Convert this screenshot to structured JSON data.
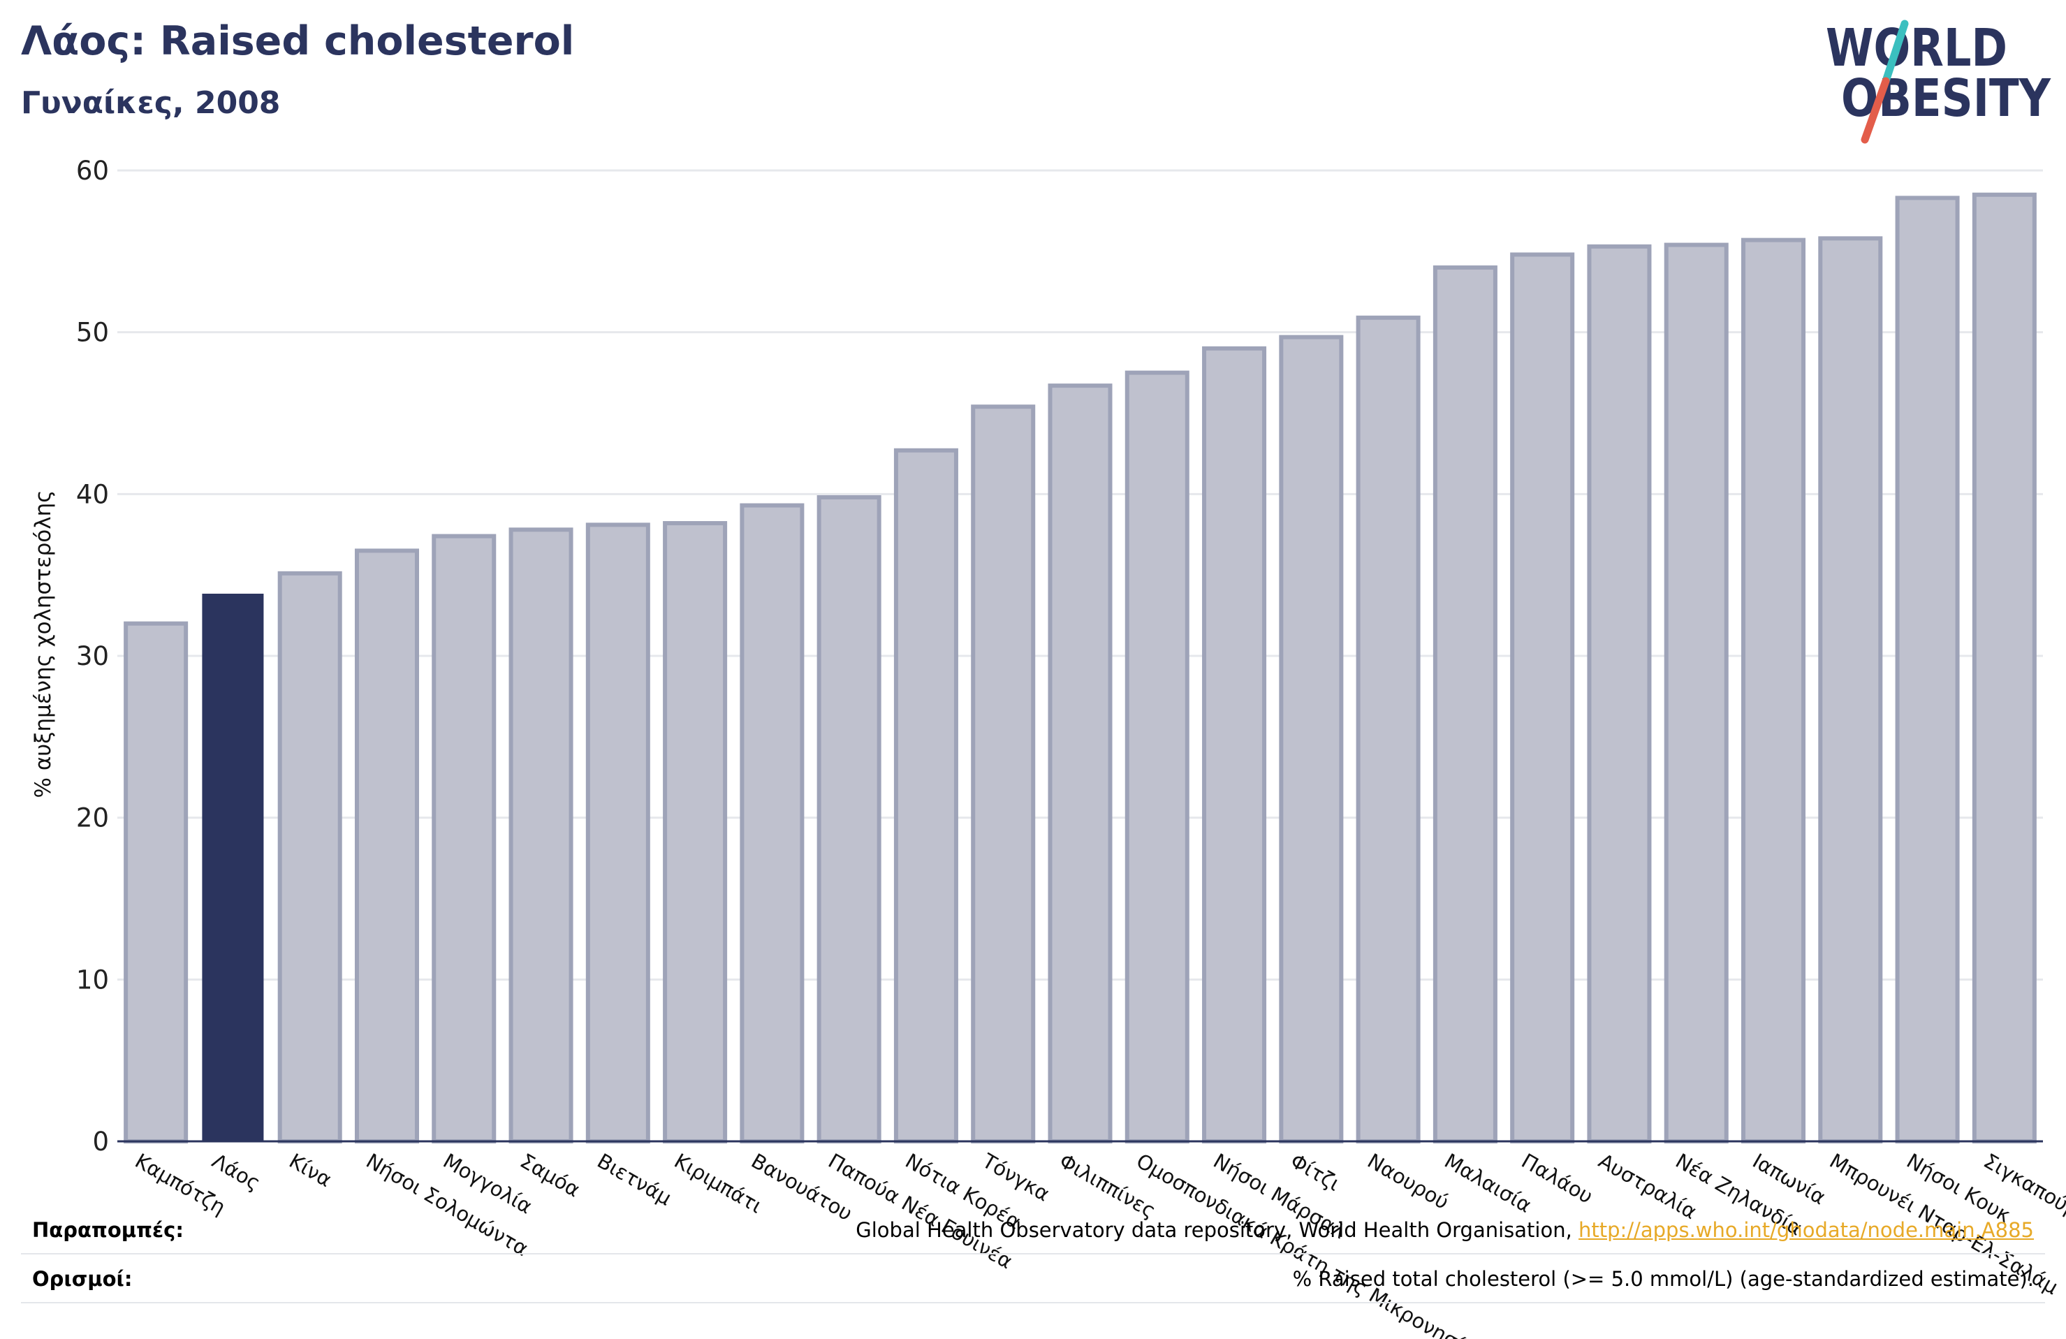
{
  "header": {
    "title": "Λάος: Raised cholesterol",
    "subtitle": "Γυναίκες, 2008"
  },
  "logo": {
    "line1": "WORLD",
    "line2": "OBESITY",
    "colors": {
      "text": "#2b345e",
      "slash_teal": "#3bbfbf",
      "slash_red": "#e35d4a"
    }
  },
  "chart_data": {
    "type": "bar",
    "ylabel": "% αυξημένης χοληστερόλης",
    "ylim": [
      0,
      60
    ],
    "yticks": [
      0,
      10,
      20,
      30,
      40,
      50,
      60
    ],
    "grid": true,
    "highlight": "Λάος",
    "colors": {
      "bar": "#bfc1ce",
      "bar_edge": "#9ea3b8",
      "highlight": "#2b345e",
      "grid": "#e6e8ec",
      "axis": "#2b345e"
    },
    "categories": [
      "Καμπότζη",
      "Λάος",
      "Κίνα",
      "Νήσοι Σολομώντα",
      "Μογγολία",
      "Σαμόα",
      "Βιετνάμ",
      "Κιριμπάτι",
      "Βανουάτου",
      "Παπούα Νέα Γουινέα",
      "Νότια Κορέα",
      "Τόνγκα",
      "Φιλιππίνες",
      "Ομοσπονδιακά Κράτη της Μικρονησίας",
      "Νήσοι Μάρσαλ",
      "Φίτζι",
      "Ναουρού",
      "Μαλαισία",
      "Παλάου",
      "Αυστραλία",
      "Νέα Ζηλανδία",
      "Ιαπωνία",
      "Μπρουνέι Νταρ-Ελ-Σαλάμ",
      "Νήσοι Κουκ",
      "Σιγκαπούρη"
    ],
    "values": [
      32.0,
      33.8,
      35.1,
      36.5,
      37.4,
      37.8,
      38.1,
      38.2,
      39.3,
      39.8,
      42.7,
      45.4,
      46.7,
      47.5,
      49.0,
      49.7,
      50.9,
      54.0,
      54.8,
      55.3,
      55.4,
      55.7,
      55.8,
      58.3,
      58.5
    ]
  },
  "footer": {
    "references_label": "Παραπομπές:",
    "references_text": "Global Health Observatory data repository, World Health Organisation, ",
    "references_link": "http://apps.who.int/ghodata/node.main.A885",
    "definitions_label": "Ορισμοί:",
    "definitions_text": "% Raised total cholesterol (>= 5.0 mmol/L) (age-standardized estimate)."
  }
}
